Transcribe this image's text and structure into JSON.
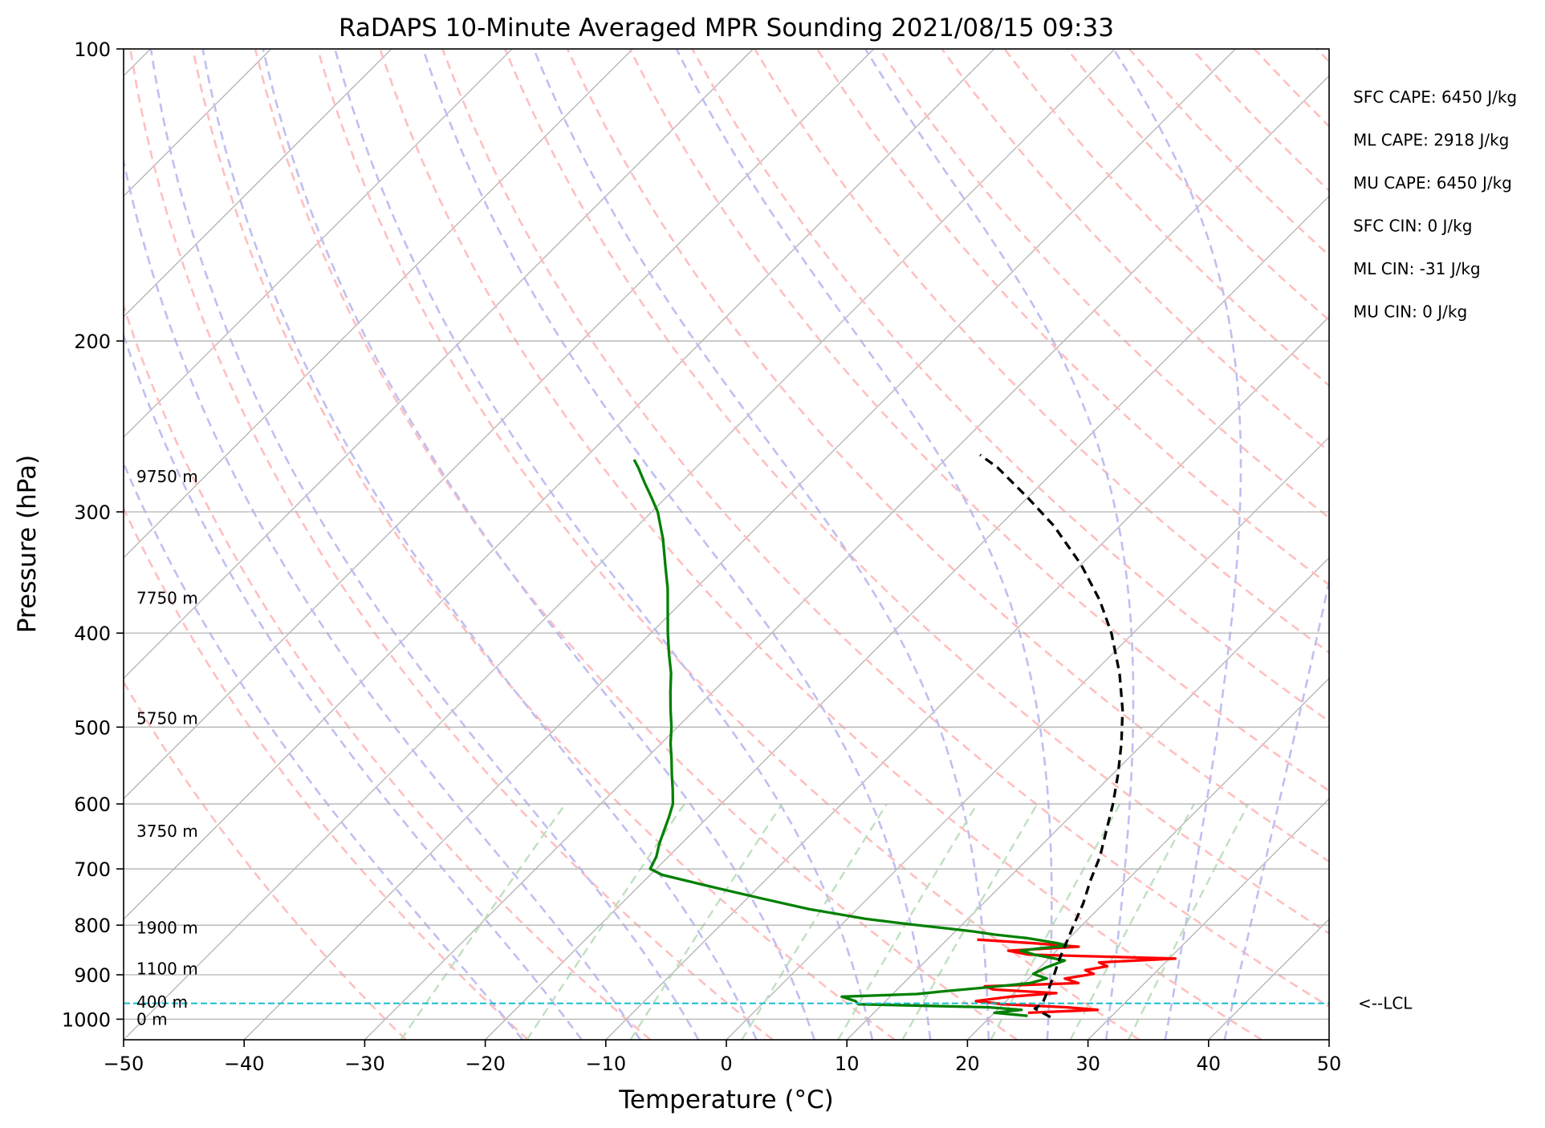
{
  "chart_data": {
    "type": "skew-t",
    "title": "RaDAPS 10-Minute Averaged MPR Sounding 2021/08/15 09:33",
    "xlabel": "Temperature (°C)",
    "ylabel": "Pressure (hPa)",
    "xlim": [
      -50,
      50
    ],
    "ylim": [
      1050,
      100
    ],
    "y_scale": "log",
    "x_ticks": [
      -50,
      -40,
      -30,
      -20,
      -10,
      0,
      10,
      20,
      30,
      40,
      50
    ],
    "x_tick_labels": [
      "−50",
      "−40",
      "−30",
      "−20",
      "−10",
      "0",
      "10",
      "20",
      "30",
      "40",
      "50"
    ],
    "y_ticks": [
      100,
      200,
      300,
      400,
      500,
      600,
      700,
      800,
      900,
      1000
    ],
    "y_tick_labels": [
      "100",
      "200",
      "300",
      "400",
      "500",
      "600",
      "700",
      "800",
      "900",
      "1000"
    ],
    "grid": true,
    "height_labels": [
      {
        "text": "0 m",
        "pressure": 1000
      },
      {
        "text": "400 m",
        "pressure": 960
      },
      {
        "text": "1100 m",
        "pressure": 887
      },
      {
        "text": "1900 m",
        "pressure": 805
      },
      {
        "text": "3750 m",
        "pressure": 640
      },
      {
        "text": "5750 m",
        "pressure": 490
      },
      {
        "text": "7750 m",
        "pressure": 368
      },
      {
        "text": "9750 m",
        "pressure": 276
      }
    ],
    "stats": [
      "SFC CAPE: 6450 J/kg",
      "ML CAPE: 2918 J/kg",
      "MU CAPE: 6450 J/kg",
      "SFC CIN: 0 J/kg",
      "ML CIN: -31 J/kg",
      "MU CIN: 0 J/kg"
    ],
    "lcl": {
      "label": "<--LCL",
      "pressure": 963
    },
    "series": [
      {
        "role": "temperature",
        "color": "#ff0000",
        "pressure": [
          985,
          978,
          972,
          965,
          958,
          948,
          940,
          932,
          925,
          918,
          908,
          898,
          890,
          882,
          874,
          866,
          858,
          850,
          842,
          835,
          828
        ],
        "temperature": [
          22.8,
          28.3,
          25.5,
          20.0,
          17.5,
          20.0,
          23.5,
          18.0,
          17.0,
          24.5,
          23.0,
          25.0,
          24.0,
          25.5,
          24.5,
          30.5,
          18.0,
          16.0,
          21.5,
          17.5,
          12.5
        ]
      },
      {
        "role": "dewpoint",
        "color": "#008000",
        "pressure": [
          992,
          985,
          978,
          972,
          965,
          958,
          948,
          942,
          936,
          928,
          918,
          908,
          898,
          885,
          870,
          858,
          850,
          845,
          840,
          835,
          830,
          825,
          818,
          812,
          806,
          798,
          788,
          770,
          750,
          730,
          710,
          700,
          680,
          660,
          640,
          620,
          600,
          580,
          560,
          540,
          520,
          500,
          480,
          460,
          440,
          420,
          400,
          380,
          360,
          340,
          320,
          300,
          290,
          280,
          270,
          265
        ],
        "temperature": [
          23.0,
          20.0,
          22.0,
          19.0,
          8.0,
          7.5,
          6.0,
          12.0,
          14.0,
          17.0,
          20.5,
          21.5,
          20.0,
          20.5,
          21.5,
          18.5,
          17.0,
          18.5,
          20.5,
          19.5,
          18.0,
          16.5,
          13.5,
          11.5,
          9.0,
          5.5,
          1.5,
          -4.0,
          -9.0,
          -14.0,
          -19.0,
          -20.5,
          -21.0,
          -21.8,
          -22.5,
          -23.2,
          -24.0,
          -25.2,
          -26.5,
          -27.8,
          -29.2,
          -30.5,
          -32.0,
          -33.5,
          -35.0,
          -36.8,
          -38.6,
          -40.4,
          -42.3,
          -44.5,
          -46.8,
          -49.5,
          -51.2,
          -53.0,
          -54.8,
          -55.8
        ]
      },
      {
        "role": "parcel",
        "color": "#000000",
        "style": "dashed",
        "pressure": [
          995,
          985,
          975,
          963,
          930,
          900,
          870,
          840,
          800,
          760,
          720,
          680,
          640,
          600,
          560,
          520,
          480,
          440,
          400,
          370,
          340,
          310,
          290,
          270,
          262
        ],
        "temperature": [
          25.0,
          24.0,
          23.0,
          23.2,
          22.5,
          21.8,
          21.0,
          20.3,
          19.3,
          18.3,
          17.0,
          15.8,
          14.2,
          12.5,
          10.5,
          8.2,
          5.5,
          2.2,
          -1.8,
          -5.5,
          -10.0,
          -15.5,
          -20.0,
          -25.0,
          -27.5
        ]
      }
    ],
    "background_lines": {
      "isotherm_color": "#b3b3b3",
      "dry_adiabat_color": "#ffbfbf",
      "moist_adiabat_color": "#bfbff2",
      "mixing_ratio_color": "#bfe0bf",
      "lcl_line_color": "#17becf"
    }
  }
}
